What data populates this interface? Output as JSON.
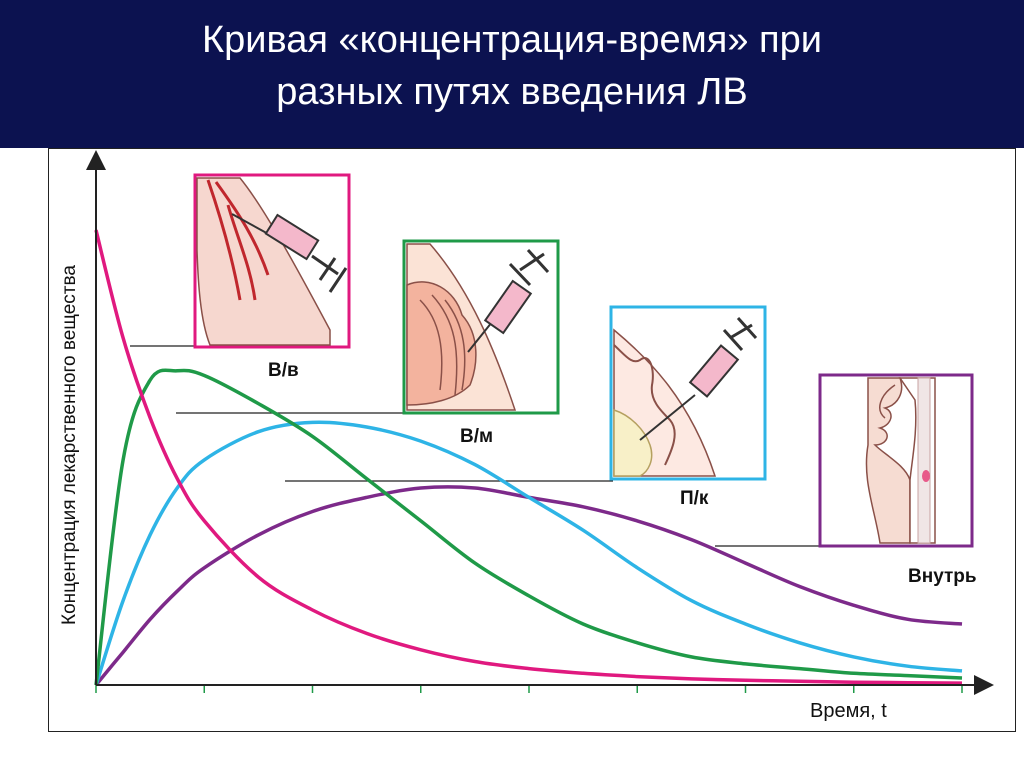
{
  "header": {
    "title_line1": "Кривая «концентрация-время» при",
    "title_line2": "разных путях введения ЛВ"
  },
  "chart_data": {
    "type": "line",
    "title": "Кривая «концентрация-время» при разных путях введения ЛВ",
    "xlabel": "Время, t",
    "ylabel": "Концентрация лекарственного вещества",
    "xlim": [
      0,
      8
    ],
    "ylim": [
      0,
      1
    ],
    "x_ticks_labeled": false,
    "y_ticks_labeled": false,
    "grid": false,
    "x": [
      0,
      0.25,
      0.5,
      0.75,
      1,
      1.5,
      2,
      2.5,
      3,
      3.5,
      4,
      4.5,
      5,
      5.5,
      6,
      6.5,
      7,
      7.5,
      8
    ],
    "series": [
      {
        "name": "В/в",
        "color": "#e0197f",
        "values": [
          0.97,
          0.74,
          0.57,
          0.44,
          0.35,
          0.23,
          0.16,
          0.11,
          0.075,
          0.05,
          0.035,
          0.025,
          0.018,
          0.013,
          0.01,
          0.008,
          0.006,
          0.005,
          0.004
        ]
      },
      {
        "name": "В/м",
        "color": "#1f9a48",
        "values": [
          0,
          0.48,
          0.65,
          0.67,
          0.66,
          0.6,
          0.53,
          0.44,
          0.35,
          0.26,
          0.19,
          0.13,
          0.09,
          0.06,
          0.045,
          0.035,
          0.025,
          0.02,
          0.015
        ]
      },
      {
        "name": "П/к",
        "color": "#2eb4e6",
        "values": [
          0,
          0.18,
          0.32,
          0.42,
          0.48,
          0.54,
          0.56,
          0.55,
          0.52,
          0.47,
          0.4,
          0.33,
          0.25,
          0.18,
          0.13,
          0.09,
          0.06,
          0.04,
          0.03
        ]
      },
      {
        "name": "Внутрь",
        "color": "#7d2a8a",
        "values": [
          0,
          0.07,
          0.14,
          0.2,
          0.25,
          0.32,
          0.37,
          0.4,
          0.42,
          0.42,
          0.4,
          0.38,
          0.35,
          0.31,
          0.26,
          0.21,
          0.17,
          0.14,
          0.13
        ]
      }
    ],
    "annotations": [
      "В/в",
      "В/м",
      "П/к",
      "Внутрь"
    ]
  },
  "colors": {
    "header_background": "#0c1250",
    "iv": "#e0197f",
    "im": "#1f9a48",
    "sc": "#2eb4e6",
    "oral": "#7d2a8a"
  },
  "illustrations": [
    {
      "route": "В/в",
      "icon": "syringe-vein-icon"
    },
    {
      "route": "В/м",
      "icon": "syringe-muscle-icon"
    },
    {
      "route": "П/к",
      "icon": "syringe-skin-icon"
    },
    {
      "route": "Внутрь",
      "icon": "oral-route-icon"
    }
  ]
}
